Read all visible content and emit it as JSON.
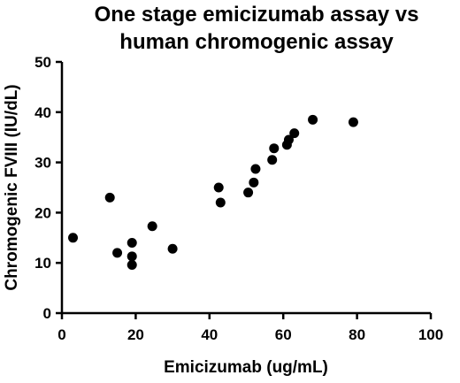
{
  "chart_data": {
    "type": "scatter",
    "title_lines": [
      "One stage emicizumab assay vs",
      "human chromogenic assay"
    ],
    "xlabel": "Emicizumab (ug/mL)",
    "ylabel": "Chromogenic FVIII (IU/dL)",
    "xlim": [
      0,
      100
    ],
    "ylim": [
      0,
      50
    ],
    "xticks": [
      "0",
      "20",
      "40",
      "60",
      "80",
      "100"
    ],
    "yticks": [
      "0",
      "10",
      "20",
      "30",
      "40",
      "50"
    ],
    "grid": false,
    "marker_color": "#000000",
    "points": [
      {
        "x": 3,
        "y": 15
      },
      {
        "x": 13,
        "y": 23
      },
      {
        "x": 15,
        "y": 12
      },
      {
        "x": 19,
        "y": 14
      },
      {
        "x": 19,
        "y": 11.3
      },
      {
        "x": 19,
        "y": 9.6
      },
      {
        "x": 24.5,
        "y": 17.3
      },
      {
        "x": 30,
        "y": 12.8
      },
      {
        "x": 42.5,
        "y": 25
      },
      {
        "x": 43,
        "y": 22
      },
      {
        "x": 50.5,
        "y": 24
      },
      {
        "x": 52,
        "y": 26
      },
      {
        "x": 52.5,
        "y": 28.7
      },
      {
        "x": 57,
        "y": 30.5
      },
      {
        "x": 57.5,
        "y": 32.8
      },
      {
        "x": 61,
        "y": 33.5
      },
      {
        "x": 61.5,
        "y": 34.5
      },
      {
        "x": 63,
        "y": 35.8
      },
      {
        "x": 68,
        "y": 38.5
      },
      {
        "x": 79,
        "y": 38
      }
    ]
  }
}
